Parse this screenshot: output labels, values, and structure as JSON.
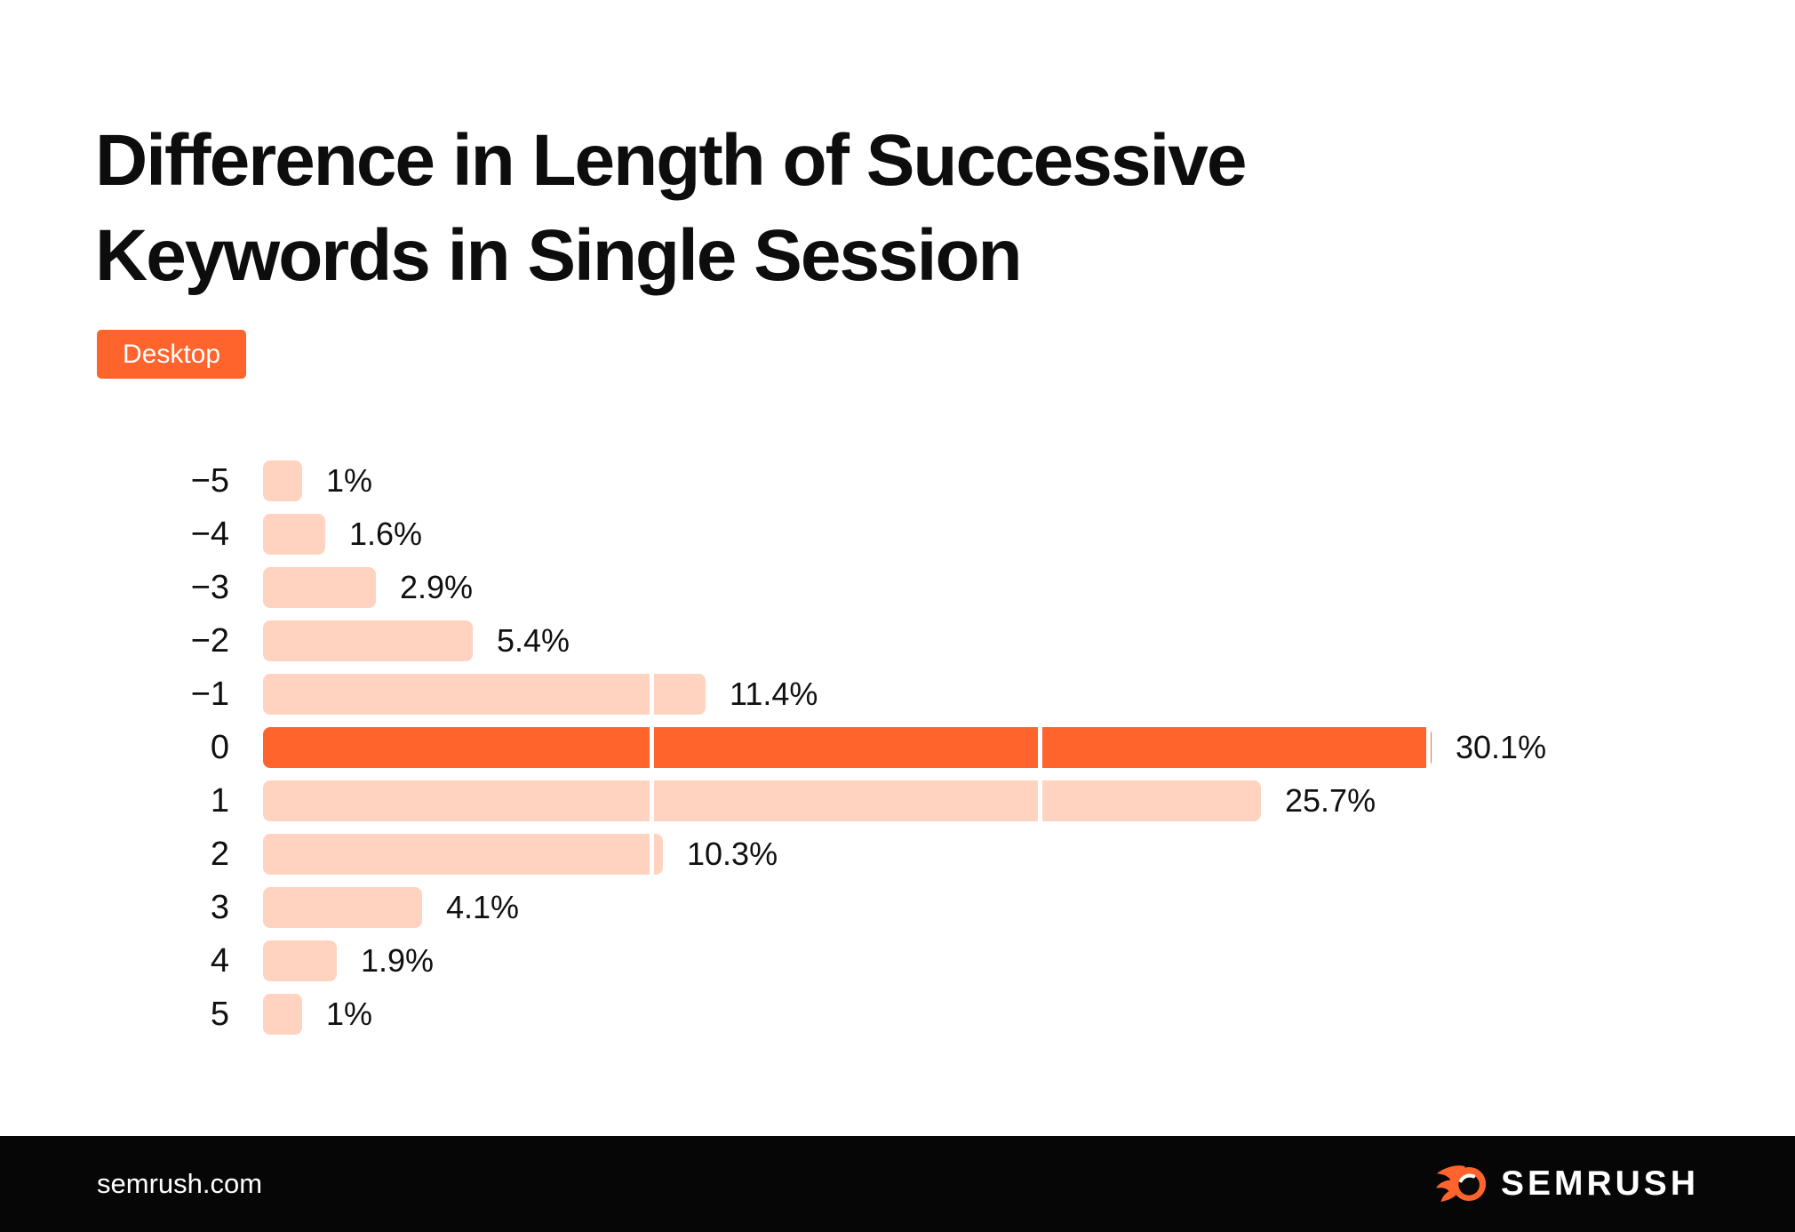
{
  "header": {
    "title_line1": "Difference in Length of Successive",
    "title_line2": "Keywords in Single Session",
    "device_badge": "Desktop"
  },
  "chart_data": {
    "type": "bar",
    "orientation": "horizontal",
    "title": "Difference in Length of Successive Keywords in Single Session",
    "series_label": "Desktop",
    "categories": [
      "−5",
      "−4",
      "−3",
      "−2",
      "−1",
      "0",
      "1",
      "2",
      "3",
      "4",
      "5"
    ],
    "values": [
      1,
      1.6,
      2.9,
      5.4,
      11.4,
      30.1,
      25.7,
      10.3,
      4.1,
      1.9,
      1
    ],
    "value_labels": [
      "1%",
      "1.6%",
      "2.9%",
      "5.4%",
      "11.4%",
      "30.1%",
      "25.7%",
      "10.3%",
      "4.1%",
      "1.9%",
      "1%"
    ],
    "unit": "%",
    "xlim": [
      0,
      31
    ],
    "gridline_values": [
      10,
      20,
      30
    ],
    "highlight_category": "0",
    "legend_position": "none",
    "grid": "vertical-white-overlay-every-10pct",
    "colors": {
      "bar": "#ffd3c0",
      "highlight": "#ff642d",
      "gridline": "#ffffff"
    }
  },
  "footer": {
    "site_url": "semrush.com",
    "logo_text": "SEMRUSH",
    "logo_icon": "semrush-flame-icon"
  },
  "colors": {
    "accent": "#ff642d",
    "bar_light": "#ffd3c0",
    "footer_bg": "#060606",
    "text": "#101010",
    "background": "#ffffff"
  }
}
